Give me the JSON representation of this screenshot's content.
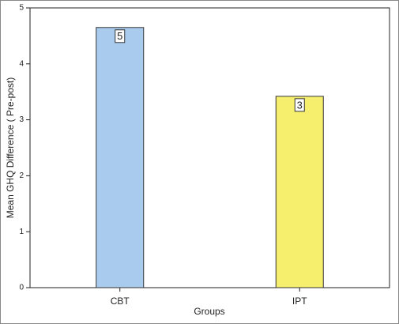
{
  "chart_data": {
    "type": "bar",
    "y_label": "Mean GHQ Difference ( Pre-post)",
    "x_label": "Groups",
    "categories": [
      "CBT",
      "IPT"
    ],
    "values": [
      4.65,
      3.42
    ],
    "value_labels": [
      "5",
      "3"
    ],
    "colors": [
      "#a9cbee",
      "#f6ee6d"
    ],
    "ylim": [
      0,
      5
    ],
    "yticks": [
      0,
      1,
      2,
      3,
      4,
      5
    ],
    "grid": false
  }
}
